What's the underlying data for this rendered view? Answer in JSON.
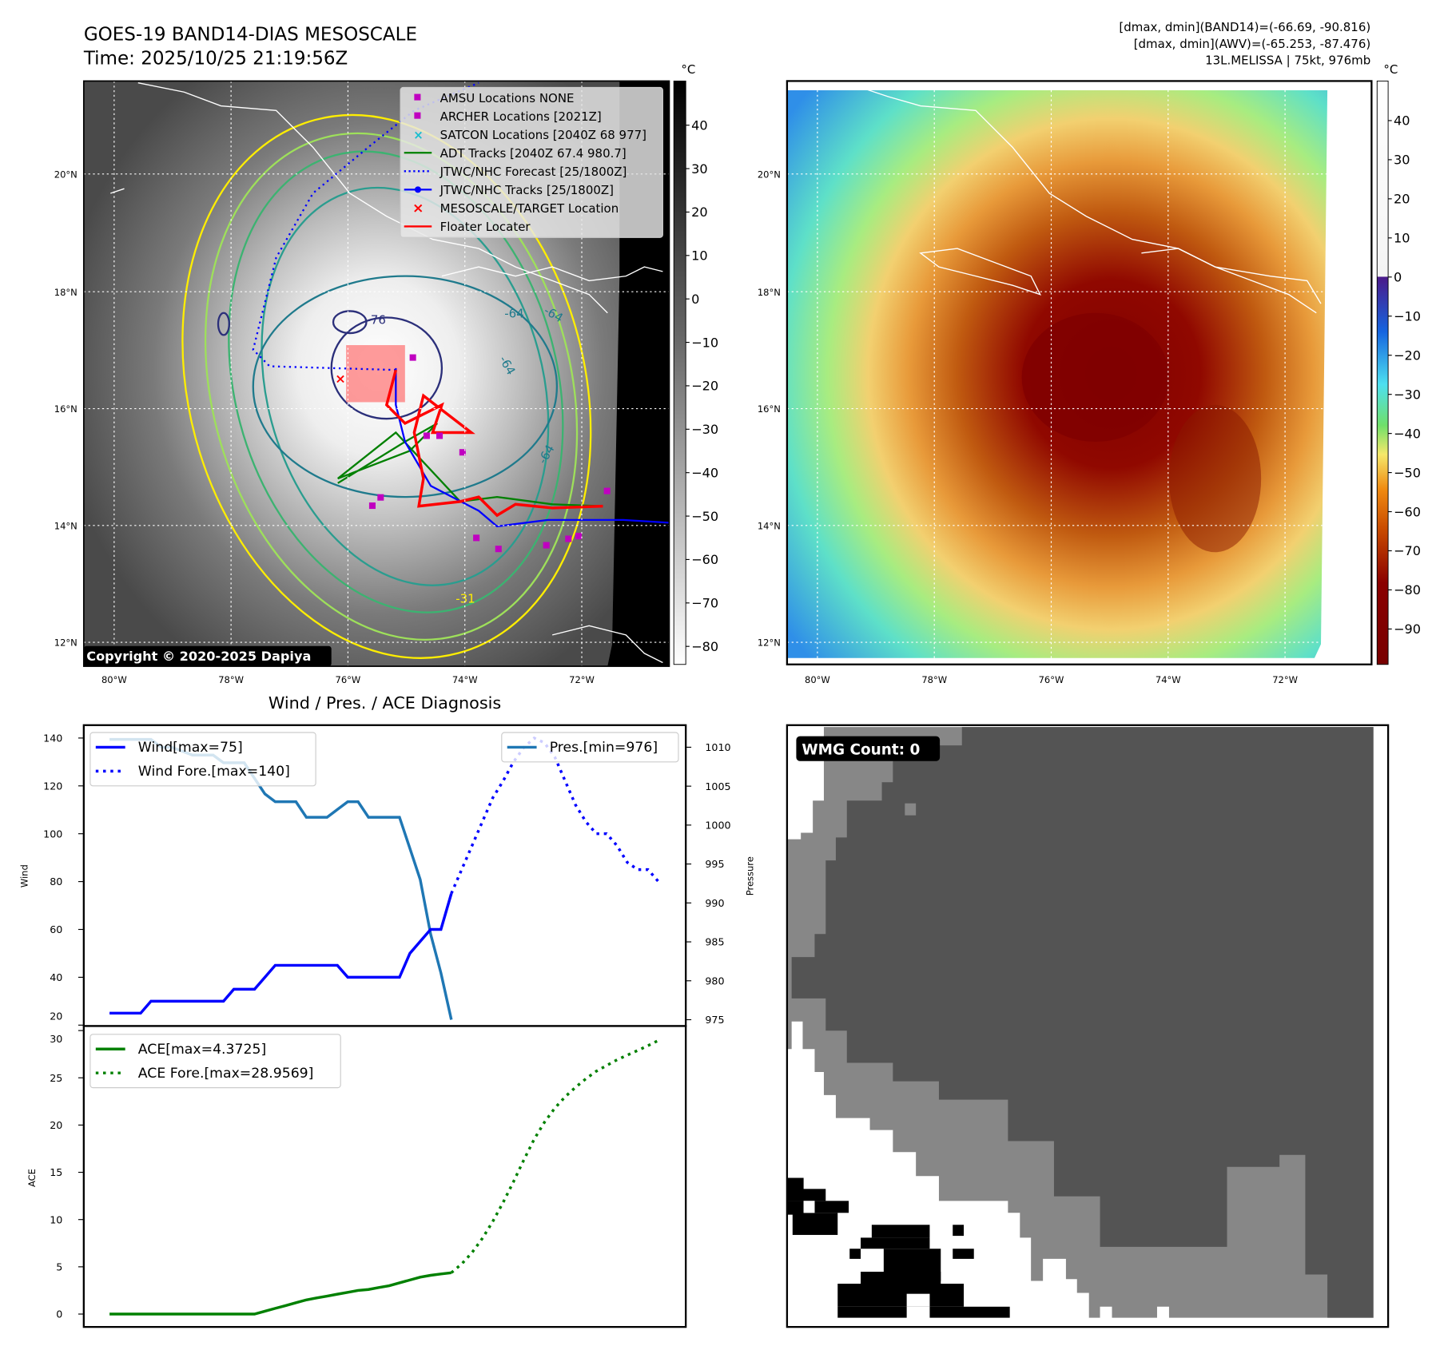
{
  "header": {
    "title": "GOES-19 BAND14-DIAS MESOSCALE",
    "time": "Time: 2025/10/25 21:19:56Z",
    "stats": [
      "[dmax, dmin](BAND14)=(-66.69, -90.816)",
      "[dmax, dmin](AWV)=(-65.253, -87.476)",
      "13L.MELISSA | 75kt, 976mb"
    ]
  },
  "map": {
    "lat_labels": [
      "20°N",
      "18°N",
      "16°N",
      "14°N",
      "12°N"
    ],
    "lon_labels": [
      "80°W",
      "78°W",
      "76°W",
      "74°W",
      "72°W"
    ],
    "contour_labels": [
      "-76",
      "-64",
      "-64",
      "-64",
      "-64",
      "-31"
    ],
    "copyright": "Copyright © 2020-2025 Dapiya",
    "legend": [
      {
        "label": "AMSU Locations NONE",
        "color": "#c000c0"
      },
      {
        "label": "ARCHER Locations [2021Z]",
        "color": "#c000c0"
      },
      {
        "label": "SATCON Locations [2040Z 68 977]",
        "color": "#17becf"
      },
      {
        "label": "ADT Tracks [2040Z 67.4 980.7]",
        "color": "#008000"
      },
      {
        "label": "JTWC/NHC Forecast [25/1800Z]",
        "color": "#0000ff"
      },
      {
        "label": "JTWC/NHC Tracks [25/1800Z]",
        "color": "#0000ff"
      },
      {
        "label": "MESOSCALE/TARGET Location",
        "color": "#ff0000"
      },
      {
        "label": "Floater Locater",
        "color": "#ff0000"
      }
    ]
  },
  "colorbar_left": {
    "unit": "°C",
    "ticks": [
      "40",
      "30",
      "20",
      "10",
      "0",
      "−10",
      "−20",
      "−30",
      "−40",
      "−50",
      "−60",
      "−70",
      "−80"
    ]
  },
  "colorbar_right": {
    "unit": "°C",
    "ticks": [
      "40",
      "30",
      "20",
      "10",
      "0",
      "−10",
      "−20",
      "−30",
      "−40",
      "−50",
      "−60",
      "−70",
      "−80",
      "−90"
    ]
  },
  "wmg": {
    "label": "WMG Count: 0"
  },
  "chart_data": [
    {
      "type": "line",
      "title": "Wind / Pres. / ACE Diagnosis",
      "ylabel": "Wind",
      "ylabel_right": "Pressure",
      "ylim": [
        20,
        146
      ],
      "ylim_right": [
        974.2,
        1012.8
      ],
      "yticks": [
        "140",
        "120",
        "100",
        "80",
        "60",
        "40",
        "20"
      ],
      "yticks_right": [
        "1010",
        "1005",
        "1000",
        "995",
        "990",
        "985",
        "980",
        "975"
      ],
      "series": [
        {
          "name": "Wind[max=75]",
          "color": "#0000ff",
          "style": "solid",
          "x_start": 0,
          "values": [
            25,
            25,
            25,
            25,
            30,
            30,
            30,
            30,
            30,
            30,
            30,
            30,
            35,
            35,
            35,
            40,
            45,
            45,
            45,
            45,
            45,
            45,
            45,
            40,
            40,
            40,
            40,
            40,
            40,
            50,
            55,
            60,
            60,
            75
          ]
        },
        {
          "name": "Wind Fore.[max=140]",
          "color": "#0000ff",
          "style": "dotted",
          "x_start": 33,
          "values": [
            75,
            85,
            95,
            105,
            115,
            122,
            130,
            136,
            140,
            138,
            132,
            122,
            112,
            105,
            100,
            100,
            95,
            88,
            85,
            85,
            80
          ]
        },
        {
          "name": "Pres.[min=976]",
          "color": "#1f77b4",
          "style": "solid",
          "axis": "right",
          "x_start": 0,
          "values": [
            1011,
            1011,
            1011,
            1011,
            1011,
            1010,
            1010,
            1009.5,
            1009,
            1009,
            1009,
            1008,
            1008,
            1008,
            1006,
            1004,
            1003,
            1003,
            1003,
            1001,
            1001,
            1001,
            1002,
            1003,
            1003,
            1001,
            1001,
            1001,
            1001,
            997,
            993,
            986,
            981,
            975
          ]
        }
      ]
    },
    {
      "type": "line",
      "ylabel": "ACE",
      "ylim": [
        -1.4,
        30.4
      ],
      "yticks": [
        "30",
        "25",
        "20",
        "15",
        "10",
        "5",
        "0"
      ],
      "series": [
        {
          "name": "ACE[max=4.3725]",
          "color": "#008000",
          "style": "solid",
          "x_start": 0,
          "values": [
            0,
            0,
            0,
            0,
            0,
            0,
            0,
            0,
            0,
            0,
            0,
            0,
            0,
            0,
            0,
            0.3,
            0.6,
            0.9,
            1.2,
            1.5,
            1.7,
            1.9,
            2.1,
            2.3,
            2.5,
            2.6,
            2.8,
            3.0,
            3.3,
            3.6,
            3.9,
            4.1,
            4.25,
            4.37
          ]
        },
        {
          "name": "ACE Fore.[max=28.9569]",
          "color": "#008000",
          "style": "dotted",
          "x_start": 33,
          "values": [
            4.37,
            5.3,
            6.5,
            8,
            9.8,
            11.8,
            14,
            16.3,
            18.5,
            20.3,
            21.8,
            23,
            24,
            24.9,
            25.7,
            26.3,
            26.9,
            27.4,
            27.9,
            28.4,
            28.96
          ]
        }
      ]
    }
  ]
}
